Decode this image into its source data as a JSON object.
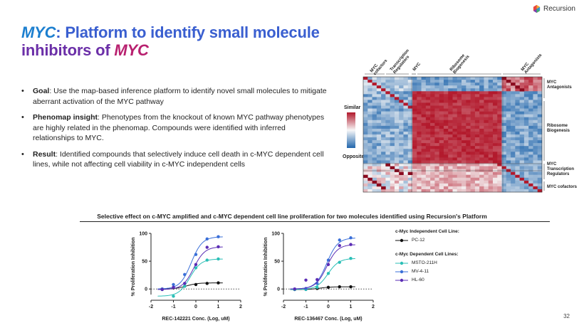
{
  "brand": {
    "name": "Recursion"
  },
  "title": {
    "part1": "MYC",
    "part2": ": Platform to ",
    "part3": "identify small molecule",
    "part4": "inhibitors of ",
    "part5": "MYC"
  },
  "bullets": [
    {
      "label": "Goal",
      "text": ": Use the map-based inference platform to identify novel small molecules to mitigate aberrant activation of the MYC pathway"
    },
    {
      "label": "Phenomap insight",
      "text": ": Phenotypes from the knockout of known MYC pathway phenotypes are highly related in the phenomap. Compounds were identified with inferred relationships to MYC."
    },
    {
      "label": "Result",
      "text": ": Identified compounds that selectively induce cell death in c-MYC dependent cell lines, while not affecting cell viability in c-MYC independent cells"
    }
  ],
  "heatmap": {
    "scale_top": "Similar",
    "scale_bottom": "Opposite",
    "top_labels": [
      "MYC cofactors",
      "Transcription Regulators",
      "MYC",
      "Ribosome Biogenesis",
      "MYC Antagonists"
    ],
    "right_labels": [
      "MYC Antagonists",
      "Ribosome Biogenesis",
      "MYC Transcription Regulators",
      "MYC cofactors"
    ],
    "colors": {
      "similar": "#b2182b",
      "neutral": "#f7f7f7",
      "opposite": "#2166ac"
    }
  },
  "section_caption": "Selective effect on c-MYC amplified and c-MYC dependent cell line proliferation for two molecules identified using Recursion's Platform",
  "chart_data": [
    {
      "type": "line",
      "title": "",
      "xlabel": "REC-142221 Conc. (Log, uM)",
      "ylabel": "% Proliferation Inhibition",
      "xlim": [
        -2,
        2
      ],
      "ylim": [
        -10,
        100
      ],
      "xticks": [
        "-2",
        "-1",
        "0",
        "1",
        "2"
      ],
      "yticks": [
        "0",
        "50",
        "100"
      ],
      "x": [
        -1.5,
        -1.0,
        -0.5,
        0.0,
        0.5,
        1.0
      ],
      "series": [
        {
          "name": "PC-12",
          "color": "#111111",
          "values": [
            0,
            2,
            5,
            8,
            10,
            11
          ]
        },
        {
          "name": "MSTO-211H",
          "color": "#2bbfb7",
          "values": [
            -1,
            -13,
            5,
            38,
            52,
            54
          ]
        },
        {
          "name": "MV-4-11",
          "color": "#3a6fd8",
          "values": [
            0,
            8,
            26,
            62,
            90,
            94
          ]
        },
        {
          "name": "HL-60",
          "color": "#5b2db5",
          "values": [
            -1,
            3,
            10,
            44,
            75,
            76
          ]
        }
      ]
    },
    {
      "type": "line",
      "title": "",
      "xlabel": "REC-136467 Conc. (Log, uM)",
      "ylabel": "% Proliferation Inhibition",
      "xlim": [
        -2,
        2
      ],
      "ylim": [
        -10,
        100
      ],
      "xticks": [
        "-2",
        "-1",
        "0",
        "1",
        "2"
      ],
      "yticks": [
        "0",
        "50",
        "100"
      ],
      "x": [
        -1.5,
        -1.0,
        -0.5,
        0.0,
        0.5,
        1.0
      ],
      "series": [
        {
          "name": "PC-12",
          "color": "#111111",
          "values": [
            -1,
            0,
            1,
            3,
            4,
            4
          ]
        },
        {
          "name": "MSTO-211H",
          "color": "#2bbfb7",
          "values": [
            -1,
            -1,
            3,
            28,
            48,
            55
          ]
        },
        {
          "name": "MV-4-11",
          "color": "#3a6fd8",
          "values": [
            0,
            1,
            10,
            52,
            88,
            92
          ]
        },
        {
          "name": "HL-60",
          "color": "#5b2db5",
          "values": [
            0,
            16,
            17,
            44,
            78,
            80
          ]
        }
      ]
    }
  ],
  "legend": {
    "independent_title": "c-Myc Independent Cell Line:",
    "independent": [
      {
        "name": "PC-12",
        "color": "#111111"
      }
    ],
    "dependent_title": "c-Myc Dependent Cell Lines:",
    "dependent": [
      {
        "name": "MSTO-211H",
        "color": "#2bbfb7"
      },
      {
        "name": "MV-4-11",
        "color": "#3a6fd8"
      },
      {
        "name": "HL-60",
        "color": "#5b2db5"
      }
    ]
  },
  "page_number": "32"
}
